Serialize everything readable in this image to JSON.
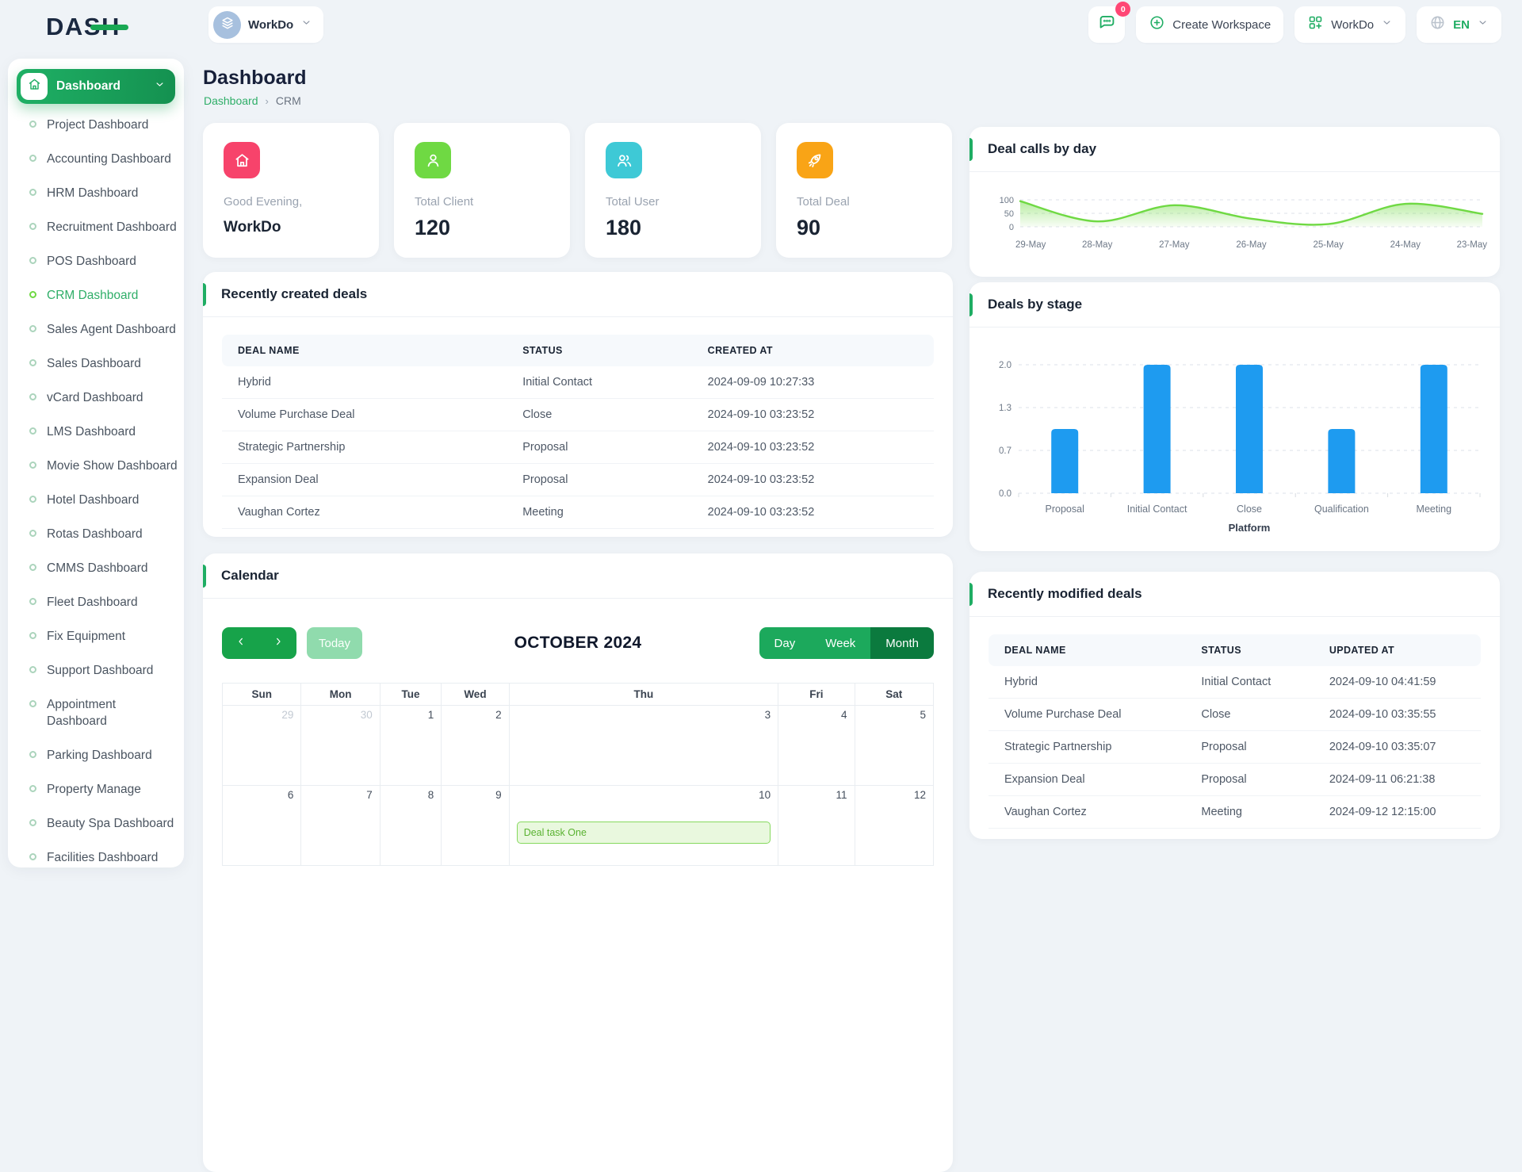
{
  "topbar": {
    "logo_text": "DASH",
    "workspace_label": "WorkDo",
    "messages_badge": "0",
    "create_workspace_label": "Create Workspace",
    "workspace_menu_label": "WorkDo",
    "language": "EN"
  },
  "sidebar": {
    "group_label": "Dashboard",
    "items": [
      {
        "label": "Project Dashboard"
      },
      {
        "label": "Accounting Dashboard"
      },
      {
        "label": "HRM Dashboard"
      },
      {
        "label": "Recruitment Dashboard"
      },
      {
        "label": "POS Dashboard"
      },
      {
        "label": "CRM Dashboard",
        "active": true
      },
      {
        "label": "Sales Agent Dashboard"
      },
      {
        "label": "Sales Dashboard"
      },
      {
        "label": "vCard Dashboard"
      },
      {
        "label": "LMS Dashboard"
      },
      {
        "label": "Movie Show Dashboard"
      },
      {
        "label": "Hotel Dashboard"
      },
      {
        "label": "Rotas Dashboard"
      },
      {
        "label": "CMMS Dashboard"
      },
      {
        "label": "Fleet Dashboard"
      },
      {
        "label": "Fix Equipment"
      },
      {
        "label": "Support Dashboard"
      },
      {
        "label": "Appointment Dashboard"
      },
      {
        "label": "Parking Dashboard"
      },
      {
        "label": "Property Manage"
      },
      {
        "label": "Beauty Spa Dashboard"
      },
      {
        "label": "Facilities Dashboard"
      }
    ]
  },
  "page": {
    "title": "Dashboard",
    "breadcrumb": {
      "link": "Dashboard",
      "current": "CRM"
    }
  },
  "stats": [
    {
      "icon": "home-icon",
      "color": "#F7436B",
      "label": "Good Evening,",
      "value": "WorkDo",
      "small": true
    },
    {
      "icon": "user-icon",
      "color": "#6FD943",
      "label": "Total Client",
      "value": "120"
    },
    {
      "icon": "users-icon",
      "color": "#3EC9D6",
      "label": "Total User",
      "value": "180"
    },
    {
      "icon": "rocket-icon",
      "color": "#F9A416",
      "label": "Total Deal",
      "value": "90"
    }
  ],
  "chart_data": [
    {
      "type": "area",
      "title": "Deal calls by day",
      "x": [
        "29-May",
        "28-May",
        "27-May",
        "26-May",
        "25-May",
        "24-May",
        "23-May"
      ],
      "values": [
        95,
        20,
        80,
        30,
        10,
        85,
        48
      ],
      "ylim": [
        0,
        100
      ],
      "yticks": [
        100,
        50,
        0
      ],
      "xlabel": "",
      "ylabel": "",
      "line_color": "#6FD943",
      "grid": "dashed horizontal"
    },
    {
      "type": "bar",
      "title": "Deals by stage",
      "categories": [
        "Proposal",
        "Initial Contact",
        "Close",
        "Qualification",
        "Meeting"
      ],
      "values": [
        1,
        2,
        2,
        1,
        2
      ],
      "xlabel": "Platform",
      "ylabel": "",
      "ylim": [
        0,
        2
      ],
      "ytick_labels": [
        "0.0",
        "0.7",
        "1.3",
        "2.0"
      ],
      "ytick_values": [
        0,
        0.6667,
        1.3333,
        2
      ],
      "bar_color": "#1E9BF0",
      "grid": "dashed horizontal"
    }
  ],
  "recent_created": {
    "title": "Recently created deals",
    "headers": [
      "DEAL NAME",
      "STATUS",
      "CREATED AT"
    ],
    "rows": [
      [
        "Hybrid",
        "Initial Contact",
        "2024-09-09 10:27:33"
      ],
      [
        "Volume Purchase Deal",
        "Close",
        "2024-09-10 03:23:52"
      ],
      [
        "Strategic Partnership",
        "Proposal",
        "2024-09-10 03:23:52"
      ],
      [
        "Expansion Deal",
        "Proposal",
        "2024-09-10 03:23:52"
      ],
      [
        "Vaughan Cortez",
        "Meeting",
        "2024-09-10 03:23:52"
      ]
    ]
  },
  "recent_modified": {
    "title": "Recently modified deals",
    "headers": [
      "DEAL NAME",
      "STATUS",
      "UPDATED AT"
    ],
    "rows": [
      [
        "Hybrid",
        "Initial Contact",
        "2024-09-10 04:41:59"
      ],
      [
        "Volume Purchase Deal",
        "Close",
        "2024-09-10 03:35:55"
      ],
      [
        "Strategic Partnership",
        "Proposal",
        "2024-09-10 03:35:07"
      ],
      [
        "Expansion Deal",
        "Proposal",
        "2024-09-11 06:21:38"
      ],
      [
        "Vaughan Cortez",
        "Meeting",
        "2024-09-12 12:15:00"
      ]
    ]
  },
  "calendar": {
    "title": "Calendar",
    "today_label": "Today",
    "month_title": "OCTOBER 2024",
    "views": [
      "Day",
      "Week",
      "Month"
    ],
    "active_view": "Month",
    "day_headers": [
      "Sun",
      "Mon",
      "Tue",
      "Wed",
      "Thu",
      "Fri",
      "Sat"
    ],
    "weeks": [
      [
        {
          "d": "29",
          "muted": true
        },
        {
          "d": "30",
          "muted": true
        },
        {
          "d": "1"
        },
        {
          "d": "2"
        },
        {
          "d": "3"
        },
        {
          "d": "4"
        },
        {
          "d": "5"
        }
      ],
      [
        {
          "d": "6"
        },
        {
          "d": "7"
        },
        {
          "d": "8"
        },
        {
          "d": "9"
        },
        {
          "d": "10",
          "event": "Deal task One"
        },
        {
          "d": "11"
        },
        {
          "d": "12"
        }
      ]
    ]
  },
  "colors": {
    "primary_green": "#1FAD63",
    "dark_green_active": "#0B7A3E",
    "lime": "#6FD943",
    "bar_blue": "#1E9BF0",
    "badge_red": "#FF4775"
  }
}
